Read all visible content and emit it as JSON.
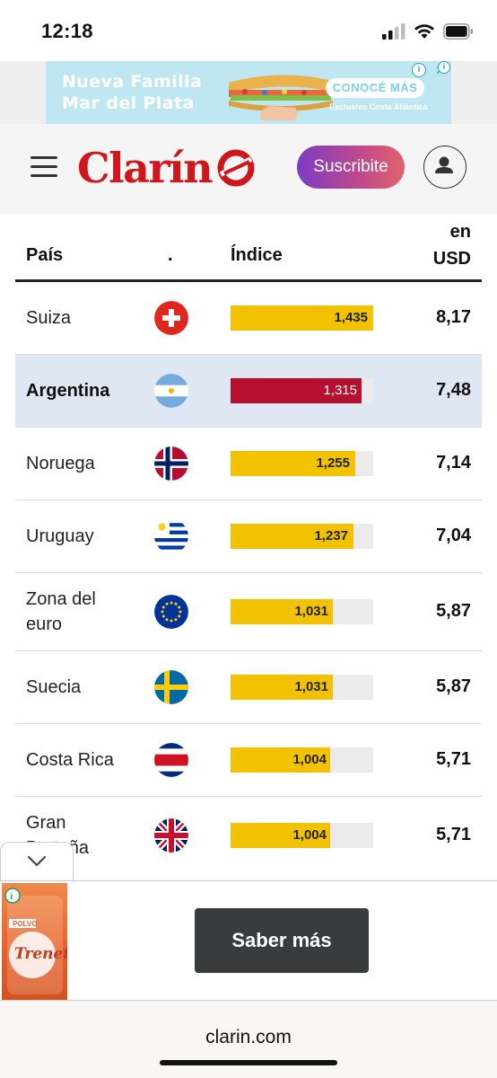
{
  "status_bar": {
    "time": "12:18",
    "icons": [
      "signal-icon",
      "wifi-icon",
      "battery-icon"
    ]
  },
  "top_ad": {
    "line1": "Nueva Familia",
    "line2": "Mar del Plata",
    "cta": "CONOCÉ MÁS",
    "small_text": "Exclusivo Costa Atlántica",
    "adchoices_icon": "info-icon",
    "close_icon": "close-icon"
  },
  "header": {
    "logo_text": "Clarín",
    "subscribe_label": "Suscribite",
    "menu_icon": "hamburger-icon",
    "user_icon": "user-icon",
    "brand_color": "#d0161b"
  },
  "table": {
    "headers": {
      "pais": "País",
      "flag": ".",
      "indice": "Índice",
      "usd_line1": "en",
      "usd_line2": "USD"
    },
    "max_index": 1.435,
    "rows": [
      {
        "country": "Suiza",
        "flag": "switzerland",
        "index_label": "1,435",
        "index": 1.435,
        "usd": "8,17",
        "highlight": false
      },
      {
        "country": "Argentina",
        "flag": "argentina",
        "index_label": "1,315",
        "index": 1.315,
        "usd": "7,48",
        "highlight": true
      },
      {
        "country": "Noruega",
        "flag": "norway",
        "index_label": "1,255",
        "index": 1.255,
        "usd": "7,14",
        "highlight": false
      },
      {
        "country": "Uruguay",
        "flag": "uruguay",
        "index_label": "1,237",
        "index": 1.237,
        "usd": "7,04",
        "highlight": false
      },
      {
        "country_line1": "Zona del",
        "country_line2": "euro",
        "flag": "eu",
        "index_label": "1,031",
        "index": 1.031,
        "usd": "5,87",
        "highlight": false
      },
      {
        "country": "Suecia",
        "flag": "sweden",
        "index_label": "1,031",
        "index": 1.031,
        "usd": "5,87",
        "highlight": false
      },
      {
        "country": "Costa Rica",
        "flag": "costa-rica",
        "index_label": "1,004",
        "index": 1.004,
        "usd": "5,71",
        "highlight": false
      },
      {
        "country_line1": "Gran",
        "country_line2": "Bretaña",
        "flag": "uk",
        "index_label": "1,004",
        "index": 1.004,
        "usd": "5,71",
        "highlight": false
      }
    ],
    "colors": {
      "bar": "#f2c200",
      "bar_highlight": "#b5102f",
      "row_highlight": "#dfe7f3"
    }
  },
  "bottom_ad": {
    "cta_label": "Saber más",
    "product_brand": "Trenet",
    "product_label": "POLVO",
    "collapse_icon": "chevron-down-icon"
  },
  "browser": {
    "url": "clarin.com"
  }
}
